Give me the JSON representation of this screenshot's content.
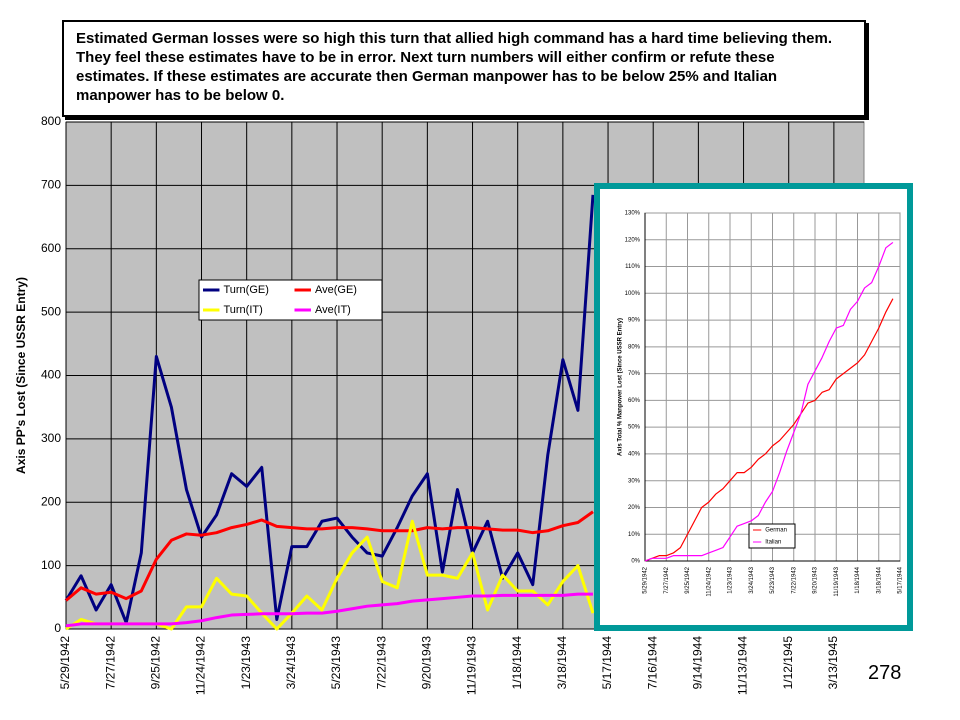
{
  "note_text": "Estimated German losses were so high this turn that allied high command has a hard time believing them.   They feel these estimates have to be in error.  Next turn numbers will either confirm or refute these estimates.  If these estimates are accurate then German manpower has to be below 25% and Italian manpower has to be below 0.",
  "page_number": "278",
  "chart_data": [
    {
      "type": "line",
      "y_label": "Axis PP's Lost (Since USSR Entry)",
      "categories": [
        "5/29/1942",
        null,
        null,
        "7/27/1942",
        null,
        null,
        "9/25/1942",
        null,
        null,
        "11/24/1942",
        null,
        null,
        "1/23/1943",
        null,
        null,
        "3/24/1943",
        null,
        null,
        "5/23/1943",
        null,
        null,
        "7/22/1943",
        null,
        null,
        "9/20/1943",
        null,
        null,
        "11/19/1943",
        null,
        null,
        "1/18/1944",
        null,
        null,
        "3/18/1944",
        null,
        null,
        "5/17/1944",
        null,
        null,
        "7/16/1944",
        null,
        null,
        "9/14/1944",
        null,
        null,
        "11/13/1944",
        null,
        null,
        "1/12/1945",
        null,
        null,
        "3/13/1945",
        null,
        null
      ],
      "ylim": [
        0,
        800
      ],
      "yticks": [
        0,
        100,
        200,
        300,
        400,
        500,
        600,
        700,
        800
      ],
      "grid": true,
      "series": [
        {
          "name": "Turn(GE)",
          "color": "#000080",
          "values": [
            45,
            84,
            30,
            70,
            10,
            120,
            430,
            350,
            220,
            145,
            180,
            245,
            225,
            255,
            15,
            130,
            130,
            170,
            175,
            145,
            120,
            115,
            160,
            210,
            245,
            90,
            220,
            120,
            170,
            80,
            120,
            70,
            275,
            425,
            345,
            685,
            null,
            null,
            null,
            null,
            null,
            null,
            null,
            null,
            null,
            null,
            null,
            null,
            null,
            null,
            null,
            null,
            null,
            null
          ]
        },
        {
          "name": "Ave(GE)",
          "color": "#ff0000",
          "values": [
            45,
            65,
            55,
            58,
            48,
            60,
            110,
            140,
            150,
            148,
            152,
            160,
            165,
            172,
            162,
            160,
            158,
            158,
            160,
            160,
            158,
            155,
            155,
            155,
            160,
            158,
            160,
            160,
            158,
            156,
            156,
            152,
            155,
            163,
            168,
            185,
            null,
            null,
            null,
            null,
            null,
            null,
            null,
            null,
            null,
            null,
            null,
            null,
            null,
            null,
            null,
            null,
            null,
            null
          ]
        },
        {
          "name": "Turn(IT)",
          "color": "#ffff00",
          "values": [
            0,
            15,
            8,
            8,
            8,
            8,
            8,
            0,
            35,
            35,
            80,
            55,
            52,
            25,
            0,
            25,
            52,
            30,
            80,
            120,
            145,
            75,
            65,
            170,
            85,
            85,
            80,
            120,
            30,
            85,
            60,
            60,
            38,
            75,
            100,
            25,
            null,
            null,
            null,
            null,
            null,
            null,
            null,
            null,
            null,
            null,
            null,
            null,
            null,
            null,
            null,
            null,
            null,
            null
          ]
        },
        {
          "name": "Ave(IT)",
          "color": "#ff00ff",
          "values": [
            5,
            8,
            8,
            8,
            8,
            8,
            8,
            8,
            10,
            13,
            18,
            22,
            23,
            24,
            24,
            24,
            25,
            25,
            28,
            32,
            36,
            38,
            40,
            44,
            46,
            48,
            50,
            52,
            52,
            53,
            53,
            53,
            53,
            53,
            55,
            55,
            null,
            null,
            null,
            null,
            null,
            null,
            null,
            null,
            null,
            null,
            null,
            null,
            null,
            null,
            null,
            null,
            null,
            null
          ]
        }
      ]
    },
    {
      "type": "line",
      "y_label": "Axis Total % Manpower Lost (Since USSR Entry)",
      "categories": [
        "5/29/1942",
        null,
        null,
        "7/27/1942",
        null,
        null,
        "9/25/1942",
        null,
        null,
        "11/24/1942",
        null,
        null,
        "1/23/1943",
        null,
        null,
        "3/24/1943",
        null,
        null,
        "5/23/1943",
        null,
        null,
        "7/22/1943",
        null,
        null,
        "9/20/1943",
        null,
        null,
        "11/19/1943",
        null,
        null,
        "1/18/1944",
        null,
        null,
        "3/18/1944",
        null,
        null,
        "5/17/1944"
      ],
      "ylim": [
        0,
        130
      ],
      "yticks": [
        {
          "value": 0,
          "label": "0%"
        },
        {
          "value": 10,
          "label": "10%"
        },
        {
          "value": 20,
          "label": "20%"
        },
        {
          "value": 30,
          "label": "30%"
        },
        {
          "value": 40,
          "label": "40%"
        },
        {
          "value": 50,
          "label": "50%"
        },
        {
          "value": 60,
          "label": "60%"
        },
        {
          "value": 70,
          "label": "70%"
        },
        {
          "value": 80,
          "label": "80%"
        },
        {
          "value": 90,
          "label": "90%"
        },
        {
          "value": 100,
          "label": "100%"
        },
        {
          "value": 110,
          "label": "110%"
        },
        {
          "value": 120,
          "label": "120%"
        },
        {
          "value": 130,
          "label": "130%"
        }
      ],
      "grid": true,
      "series": [
        {
          "name": "German",
          "color": "#ff0000",
          "values": [
            0,
            1,
            2,
            2,
            3,
            5,
            10,
            15,
            20,
            22,
            25,
            27,
            30,
            33,
            33,
            35,
            38,
            40,
            43,
            45,
            48,
            51,
            55,
            59,
            60,
            63,
            64,
            68,
            70,
            72,
            74,
            77,
            82,
            87,
            93,
            98,
            null
          ]
        },
        {
          "name": "Italian",
          "color": "#ff00ff",
          "values": [
            0,
            1,
            1,
            1,
            2,
            2,
            2,
            2,
            2,
            3,
            4,
            5,
            9,
            13,
            14,
            15,
            17,
            22,
            26,
            33,
            41,
            48,
            55,
            66,
            71,
            76,
            82,
            87,
            88,
            94,
            97,
            102,
            104,
            110,
            117,
            119,
            null
          ]
        }
      ]
    }
  ]
}
